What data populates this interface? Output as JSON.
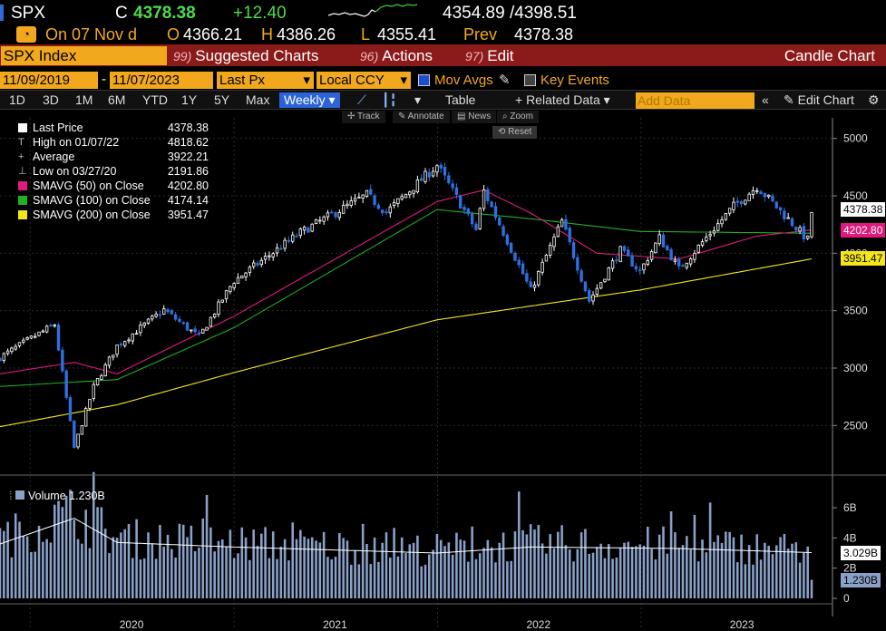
{
  "quote": {
    "ticker": "SPX",
    "last_prefix": "C",
    "last": "4378.38",
    "change": "+12.40",
    "range_low": "4354.89",
    "range_high": "/4398.51"
  },
  "ohlc": {
    "delay_label": "On 07 Nov d",
    "open_label": "O",
    "open": "4366.21",
    "high_label": "H",
    "high": "4386.26",
    "low_label": "L",
    "low": "4355.41",
    "prev_label": "Prev",
    "prev": "4378.38"
  },
  "command_bar": {
    "security": "SPX Index",
    "menus": [
      {
        "num": "99)",
        "label": "Suggested Charts"
      },
      {
        "num": "96)",
        "label": "Actions"
      },
      {
        "num": "97)",
        "label": "Edit"
      }
    ],
    "title": "Candle Chart"
  },
  "settings": {
    "start_date": "11/09/2019",
    "end_date": "11/07/2023",
    "price_field": "Last Px",
    "currency": "Local CCY",
    "mov_avgs_label": "Mov Avgs",
    "key_events_label": "Key Events"
  },
  "periods": [
    "1D",
    "3D",
    "1M",
    "6M",
    "YTD",
    "1Y",
    "5Y",
    "Max"
  ],
  "frequency": "Weekly",
  "table_label": "Table",
  "related_label": "+ Related Data",
  "add_data_placeholder": "Add Data",
  "edit_chart_label": "Edit Chart",
  "mini_tools": [
    "Track",
    "Annotate",
    "News",
    "Zoom"
  ],
  "reset_label": "Reset",
  "legend": [
    {
      "label": "Last Price",
      "value": "4378.38",
      "swatch": "#ffffff",
      "marker": "box"
    },
    {
      "label": "High on 01/07/22",
      "value": "4818.62",
      "marker": "T"
    },
    {
      "label": "Average",
      "value": "3922.21",
      "marker": "+"
    },
    {
      "label": "Low on 03/27/20",
      "value": "2191.86",
      "marker": "⊥"
    },
    {
      "label": "SMAVG (50)  on Close",
      "value": "4202.80",
      "swatch": "#e0197d",
      "marker": "box"
    },
    {
      "label": "SMAVG (100)  on Close",
      "value": "4174.14",
      "swatch": "#20b020",
      "marker": "box"
    },
    {
      "label": "SMAVG (200)  on Close",
      "value": "3951.47",
      "swatch": "#f5e61a",
      "marker": "box"
    }
  ],
  "volume_legend": {
    "label": "Volume",
    "value": "1.230B"
  },
  "tags": {
    "last": "4378.38",
    "sma50": "4202.80",
    "sma200": "3951.47",
    "vol_avg": "3.029B",
    "vol": "1.230B"
  },
  "colors": {
    "up": "#ffffff",
    "down": "#2f6fe0",
    "sma50": "#e0197d",
    "sma100": "#20b020",
    "sma200": "#f5e61a",
    "volume": "#8aa0c8",
    "accent": "#f2a81d"
  },
  "chart_data": {
    "type": "candlestick",
    "title": "SPX Index",
    "frequency": "Weekly",
    "y_ticks": [
      2500,
      3000,
      3500,
      4000,
      4500,
      5000
    ],
    "ylim": [
      2100,
      5100
    ],
    "x_labels": [
      "2020",
      "2021",
      "2022",
      "2023"
    ],
    "volume_ticks": [
      "0",
      "2B",
      "4B",
      "6B"
    ],
    "volume_ylim": [
      0,
      7.5
    ],
    "keyframes": [
      {
        "date": "2019-11-08",
        "close": 3093
      },
      {
        "date": "2019-12-27",
        "close": 3240
      },
      {
        "date": "2020-02-14",
        "close": 3380
      },
      {
        "date": "2020-02-28",
        "close": 2954
      },
      {
        "date": "2020-03-20",
        "close": 2305
      },
      {
        "date": "2020-04-24",
        "close": 2837
      },
      {
        "date": "2020-06-05",
        "close": 3193
      },
      {
        "date": "2020-08-28",
        "close": 3508
      },
      {
        "date": "2020-10-30",
        "close": 3270
      },
      {
        "date": "2020-12-31",
        "close": 3756
      },
      {
        "date": "2021-04-30",
        "close": 4181
      },
      {
        "date": "2021-08-27",
        "close": 4509
      },
      {
        "date": "2021-10-01",
        "close": 4357
      },
      {
        "date": "2021-12-31",
        "close": 4766
      },
      {
        "date": "2022-03-11",
        "close": 4204
      },
      {
        "date": "2022-03-25",
        "close": 4543
      },
      {
        "date": "2022-06-17",
        "close": 3675
      },
      {
        "date": "2022-08-12",
        "close": 4280
      },
      {
        "date": "2022-09-30",
        "close": 3586
      },
      {
        "date": "2022-11-25",
        "close": 4026
      },
      {
        "date": "2022-12-30",
        "close": 3840
      },
      {
        "date": "2023-02-03",
        "close": 4136
      },
      {
        "date": "2023-03-10",
        "close": 3862
      },
      {
        "date": "2023-06-16",
        "close": 4410
      },
      {
        "date": "2023-07-28",
        "close": 4582
      },
      {
        "date": "2023-10-27",
        "close": 4117
      },
      {
        "date": "2023-11-03",
        "close": 4358
      }
    ],
    "sma50_keyframes": [
      {
        "date": "2019-11-08",
        "v": 2950
      },
      {
        "date": "2020-03-20",
        "v": 3050
      },
      {
        "date": "2020-06-05",
        "v": 2950
      },
      {
        "date": "2020-12-31",
        "v": 3450
      },
      {
        "date": "2021-12-31",
        "v": 4450
      },
      {
        "date": "2022-03-25",
        "v": 4550
      },
      {
        "date": "2022-06-17",
        "v": 4350
      },
      {
        "date": "2022-10-14",
        "v": 4000
      },
      {
        "date": "2023-03-10",
        "v": 3950
      },
      {
        "date": "2023-07-28",
        "v": 4150
      },
      {
        "date": "2023-11-03",
        "v": 4203
      }
    ],
    "sma100_keyframes": [
      {
        "date": "2019-11-08",
        "v": 2840
      },
      {
        "date": "2020-06-05",
        "v": 2900
      },
      {
        "date": "2020-12-31",
        "v": 3350
      },
      {
        "date": "2021-12-31",
        "v": 4380
      },
      {
        "date": "2022-06-17",
        "v": 4300
      },
      {
        "date": "2022-12-30",
        "v": 4190
      },
      {
        "date": "2023-11-03",
        "v": 4174
      }
    ],
    "sma200_keyframes": [
      {
        "date": "2019-11-08",
        "v": 2490
      },
      {
        "date": "2020-06-05",
        "v": 2680
      },
      {
        "date": "2020-12-31",
        "v": 2960
      },
      {
        "date": "2021-12-31",
        "v": 3420
      },
      {
        "date": "2022-12-30",
        "v": 3680
      },
      {
        "date": "2023-11-03",
        "v": 3951
      }
    ],
    "volume_keyframes": [
      {
        "date": "2019-11-08",
        "v": 3.6
      },
      {
        "date": "2020-03-20",
        "v": 5.3
      },
      {
        "date": "2020-06-05",
        "v": 3.7
      },
      {
        "date": "2020-12-31",
        "v": 3.4
      },
      {
        "date": "2021-12-31",
        "v": 3.0
      },
      {
        "date": "2022-06-17",
        "v": 3.4
      },
      {
        "date": "2023-03-10",
        "v": 3.3
      },
      {
        "date": "2023-11-03",
        "v": 3.03
      }
    ],
    "last_volume": 1.23
  }
}
